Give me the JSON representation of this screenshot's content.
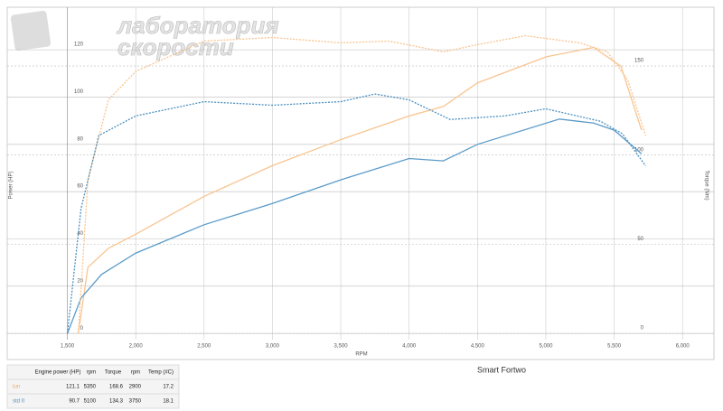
{
  "chart_data": {
    "type": "line",
    "title": "Smart Fortwo",
    "logo": [
      "лаборатория",
      "скорости"
    ],
    "x_label": "RPM",
    "y_label": "Power (HP)",
    "y2_label": "Torque (Nm)",
    "xlim": [
      1060,
      6230
    ],
    "ylim": [
      -11,
      138
    ],
    "y2lim": [
      -14.7,
      183
    ],
    "xticks": [
      {
        "value": 1500,
        "label": "1,500"
      },
      {
        "value": 2000,
        "label": "2,000"
      },
      {
        "value": 2500,
        "label": "2,500"
      },
      {
        "value": 3000,
        "label": "3,000"
      },
      {
        "value": 3500,
        "label": "3,500"
      },
      {
        "value": 4000,
        "label": "4,000"
      },
      {
        "value": 4500,
        "label": "4,500"
      },
      {
        "value": 5000,
        "label": "5,000"
      },
      {
        "value": 5500,
        "label": "5,500"
      },
      {
        "value": 6000,
        "label": "6,000"
      }
    ],
    "yticks": [
      0,
      20,
      40,
      60,
      80,
      100,
      120
    ],
    "y2ticks": [
      0,
      50,
      100,
      150
    ],
    "grid": true,
    "series": [
      {
        "name": "tun power",
        "color": "#f9c48f",
        "dash": false,
        "x": [
          1580,
          1650,
          1800,
          2000,
          2500,
          3000,
          3500,
          4000,
          4250,
          4500,
          5000,
          5350,
          5550,
          5700
        ],
        "values": [
          0,
          28,
          36,
          42,
          58,
          71,
          82,
          92,
          96,
          106,
          117,
          121,
          113,
          86
        ]
      },
      {
        "name": "std II power",
        "color": "#5b9bc8",
        "dash": false,
        "x": [
          1500,
          1600,
          1750,
          2000,
          2500,
          3000,
          3500,
          4000,
          4250,
          4500,
          5100,
          5350,
          5500,
          5700
        ],
        "values": [
          0,
          15,
          25,
          34,
          46,
          55,
          65,
          74,
          73,
          80,
          90.7,
          89,
          86,
          76
        ]
      },
      {
        "name": "tun torque",
        "color": "#f9c48f",
        "dash": true,
        "axis": "y2",
        "x": [
          1580,
          1650,
          1800,
          2000,
          2500,
          3000,
          3500,
          3850,
          4250,
          4500,
          4850,
          5250,
          5450,
          5600,
          5730
        ],
        "values": [
          0,
          86,
          131,
          147,
          164,
          166,
          163,
          164,
          158,
          162,
          167,
          163,
          158,
          142,
          111
        ]
      },
      {
        "name": "std II torque",
        "color": "#4a90c0",
        "dash": true,
        "axis": "y2",
        "x": [
          1500,
          1600,
          1730,
          2000,
          2500,
          3000,
          3500,
          3750,
          4000,
          4300,
          4700,
          5000,
          5400,
          5560,
          5730
        ],
        "values": [
          0,
          70,
          111,
          122,
          130,
          128,
          130,
          134.3,
          131,
          120,
          122,
          126,
          119,
          112,
          94
        ]
      }
    ]
  },
  "table": {
    "header": [
      "Engine power (HP)",
      "rpm",
      "Torque",
      "rpm",
      "Temp (#C)"
    ],
    "rows": [
      [
        "tun",
        121.1,
        5350,
        168.6,
        2900,
        17.2
      ],
      [
        "std II",
        90.7,
        5100,
        134.3,
        3750,
        18.1
      ]
    ]
  }
}
